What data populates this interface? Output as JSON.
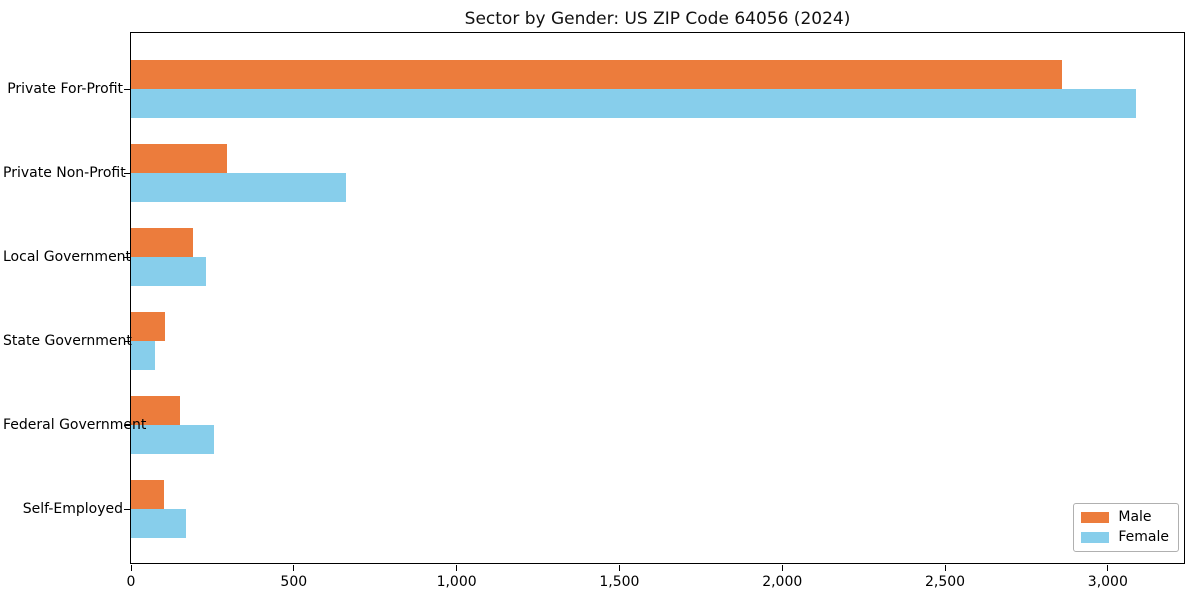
{
  "title": "Sector by Gender: US ZIP Code 64056 (2024)",
  "colors": {
    "male": "#ec7c3c",
    "female": "#87ceeb",
    "axis": "#000000",
    "legend_border": "#b0b0b0",
    "background": "#ffffff"
  },
  "chart_data": {
    "type": "bar",
    "orientation": "horizontal",
    "title": "Sector by Gender: US ZIP Code 64056 (2024)",
    "xlabel": "",
    "ylabel": "",
    "categories": [
      "Private For-Profit",
      "Private Non-Profit",
      "Local Government",
      "State Government",
      "Federal Government",
      "Self-Employed"
    ],
    "series": [
      {
        "name": "Male",
        "color": "#ec7c3c",
        "values": [
          2860,
          295,
          190,
          105,
          150,
          100
        ]
      },
      {
        "name": "Female",
        "color": "#87ceeb",
        "values": [
          3085,
          660,
          230,
          75,
          255,
          170
        ]
      }
    ],
    "xlim": [
      0,
      3240
    ],
    "xticks": [
      0,
      500,
      1000,
      1500,
      2000,
      2500,
      3000
    ],
    "xtick_labels": [
      "0",
      "500",
      "1,000",
      "1,500",
      "2,000",
      "2,500",
      "3,000"
    ],
    "legend_position": "lower right",
    "grid": false
  }
}
